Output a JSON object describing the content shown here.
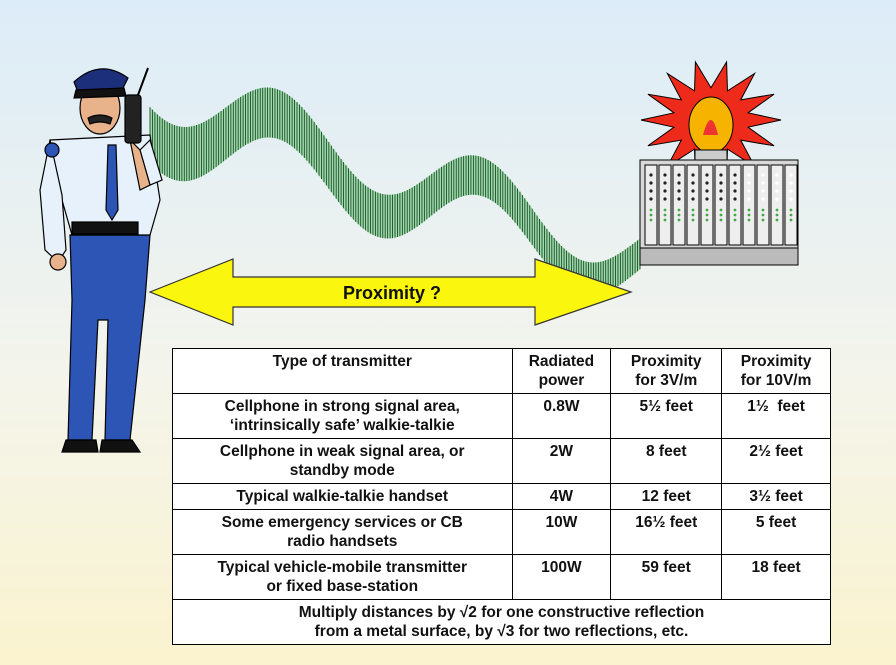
{
  "arrow_label": "Proximity ?",
  "table": {
    "header": [
      [
        "Type of transmitter"
      ],
      [
        "Radiated",
        "power"
      ],
      [
        "Proximity",
        "for 3V/m"
      ],
      [
        "Proximity",
        "for 10V/m"
      ]
    ],
    "rows": [
      [
        [
          "Cellphone in strong signal area,",
          "‘intrinsically safe’ walkie-talkie"
        ],
        [
          "0.8W"
        ],
        [
          "5½ feet"
        ],
        [
          "1½  feet"
        ]
      ],
      [
        [
          "Cellphone in weak signal area, or",
          "standby mode"
        ],
        [
          "2W"
        ],
        [
          "8 feet"
        ],
        [
          "2½ feet"
        ]
      ],
      [
        [
          "Typical walkie-talkie handset"
        ],
        [
          "4W"
        ],
        [
          "12 feet"
        ],
        [
          "3½ feet"
        ]
      ],
      [
        [
          "Some emergency services or CB",
          "radio handsets"
        ],
        [
          "10W"
        ],
        [
          "16½ feet"
        ],
        [
          "5 feet"
        ]
      ],
      [
        [
          "Typical vehicle-mobile transmitter",
          "or fixed base-station"
        ],
        [
          "100W"
        ],
        [
          "59 feet"
        ],
        [
          "18 feet"
        ]
      ]
    ],
    "note": [
      "Multiply distances by √2 for one constructive reflection",
      "from a metal surface, by √3 for two reflections, etc."
    ]
  }
}
